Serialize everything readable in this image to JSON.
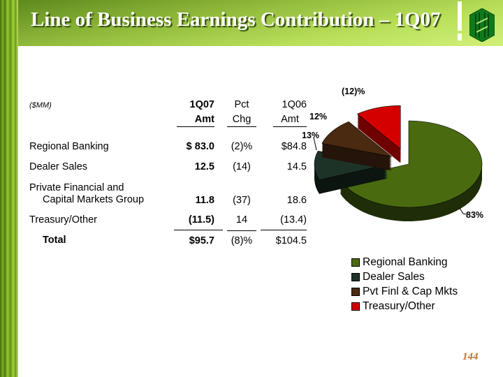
{
  "title": "Line of Business Earnings Contribution – 1Q07",
  "page_number": "144",
  "table": {
    "unit_label": "($MM)",
    "headers": [
      {
        "line1": "1Q07",
        "line2": "Amt"
      },
      {
        "line1": "Pct",
        "line2": "Chg"
      },
      {
        "line1": "1Q06",
        "line2": "Amt"
      }
    ],
    "rows": [
      {
        "label": "Regional Banking",
        "amt_1q07": "$  83.0",
        "pct_chg": "(2)%",
        "amt_1q06": "$84.8"
      },
      {
        "label": "Dealer Sales",
        "amt_1q07": "12.5",
        "pct_chg": "(14)",
        "amt_1q06": "14.5"
      },
      {
        "label_line1": "Private Financial and",
        "label_line2": "Capital Markets Group",
        "amt_1q07": "11.8",
        "pct_chg": "(37)",
        "amt_1q06": "18.6"
      },
      {
        "label": "Treasury/Other",
        "amt_1q07": "(11.5)",
        "pct_chg": "14",
        "amt_1q06": "(13.4)"
      }
    ],
    "total": {
      "label": "Total",
      "amt_1q07": "$95.7",
      "pct_chg": "(8)%",
      "amt_1q06": "$104.5"
    }
  },
  "chart_data": {
    "type": "pie",
    "title": "",
    "categories": [
      "Regional Banking",
      "Dealer Sales",
      "Pvt Finl & Cap Mkts",
      "Treasury/Other"
    ],
    "values": [
      83,
      13,
      12,
      -12
    ],
    "labels": [
      "83%",
      "13%",
      "12%",
      "(12)%"
    ],
    "colors": [
      "#4a6a10",
      "#1e3328",
      "#4a2a10",
      "#d40000"
    ],
    "legend_position": "bottom"
  }
}
